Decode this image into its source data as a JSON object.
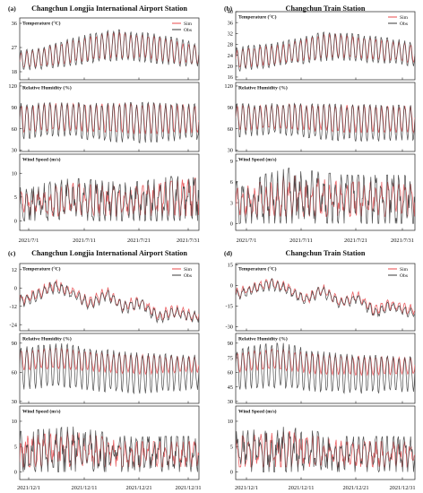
{
  "colors": {
    "sim": "#e8484b",
    "obs": "#3b3b3b"
  },
  "chart_data": [
    {
      "type": "line",
      "panel_label": "(a)",
      "title": "Changchun Longjia International Airport Station",
      "x_tick_labels": [
        "2021/7/1",
        "2021/7/11",
        "2021/7/21",
        "2021/7/31"
      ],
      "x_range": [
        "2021-07-01",
        "2021-07-31"
      ],
      "legend": {
        "placement": "top-right",
        "entries": [
          "Sim",
          "Obs"
        ]
      },
      "subplots": [
        {
          "label": "Temperature (°C)",
          "ylim": [
            15,
            38
          ],
          "yticks": [
            18,
            27,
            36
          ],
          "series": [
            {
              "name": "Sim",
              "x": [
                "2021-07-01",
                "2021-07-05",
                "2021-07-09",
                "2021-07-13",
                "2021-07-17",
                "2021-07-21",
                "2021-07-25",
                "2021-07-29",
                "2021-07-31"
              ],
              "daily_max": [
                25,
                27,
                29,
                31,
                33,
                32,
                31,
                29,
                28
              ],
              "daily_min": [
                19,
                20,
                21,
                22,
                23,
                23,
                22,
                21,
                21
              ]
            },
            {
              "name": "Obs",
              "x": [
                "2021-07-01",
                "2021-07-05",
                "2021-07-09",
                "2021-07-13",
                "2021-07-17",
                "2021-07-21",
                "2021-07-25",
                "2021-07-29",
                "2021-07-31"
              ],
              "daily_max": [
                26,
                27,
                30,
                32,
                34,
                33,
                32,
                30,
                29
              ],
              "daily_min": [
                18,
                19,
                20,
                21,
                22,
                22,
                21,
                20,
                20
              ]
            }
          ]
        },
        {
          "label": "Relative Humidity (%)",
          "ylim": [
            28,
            125
          ],
          "yticks": [
            30,
            60,
            90,
            120
          ],
          "series": [
            {
              "name": "Sim",
              "x": [
                "2021-07-01",
                "2021-07-08",
                "2021-07-15",
                "2021-07-22",
                "2021-07-31"
              ],
              "daily_max": [
                94,
                96,
                95,
                96,
                94
              ],
              "daily_min": [
                55,
                58,
                55,
                52,
                54
              ]
            },
            {
              "name": "Obs",
              "x": [
                "2021-07-01",
                "2021-07-08",
                "2021-07-15",
                "2021-07-22",
                "2021-07-31"
              ],
              "daily_max": [
                96,
                97,
                96,
                97,
                95
              ],
              "daily_min": [
                45,
                50,
                42,
                40,
                44
              ]
            }
          ]
        },
        {
          "label": "Wind Speed (m/s)",
          "ylim": [
            -2,
            14
          ],
          "yticks": [
            0,
            5,
            10
          ],
          "series": [
            {
              "name": "Sim",
              "x": [
                "2021-07-01",
                "2021-07-10",
                "2021-07-20",
                "2021-07-31"
              ],
              "daily_max": [
                6,
                8,
                7,
                9
              ],
              "daily_min": [
                1,
                1,
                1,
                1
              ]
            },
            {
              "name": "Obs",
              "x": [
                "2021-07-01",
                "2021-07-10",
                "2021-07-20",
                "2021-07-31"
              ],
              "daily_max": [
                7,
                9,
                8,
                10
              ],
              "daily_min": [
                0,
                0,
                0,
                0
              ]
            }
          ]
        }
      ]
    },
    {
      "type": "line",
      "panel_label": "(b)",
      "title": "Changchun Train Station",
      "x_tick_labels": [
        "2021/7/1",
        "2021/7/11",
        "2021/7/21",
        "2021/7/31"
      ],
      "x_range": [
        "2021-07-01",
        "2021-07-31"
      ],
      "legend": {
        "placement": "top-right",
        "entries": [
          "Sim",
          "Obs"
        ]
      },
      "subplots": [
        {
          "label": "Temperature (°C)",
          "ylim": [
            15,
            40
          ],
          "yticks": [
            16,
            20,
            24,
            28,
            32,
            36,
            40
          ],
          "series": [
            {
              "name": "Sim",
              "x": [
                "2021-07-01",
                "2021-07-05",
                "2021-07-09",
                "2021-07-13",
                "2021-07-17",
                "2021-07-21",
                "2021-07-25",
                "2021-07-29",
                "2021-07-31"
              ],
              "daily_max": [
                26,
                27,
                28,
                30,
                32,
                31,
                30,
                29,
                28
              ],
              "daily_min": [
                19,
                20,
                21,
                22,
                23,
                23,
                22,
                22,
                21
              ]
            },
            {
              "name": "Obs",
              "x": [
                "2021-07-01",
                "2021-07-05",
                "2021-07-09",
                "2021-07-13",
                "2021-07-17",
                "2021-07-21",
                "2021-07-25",
                "2021-07-29",
                "2021-07-31"
              ],
              "daily_max": [
                27,
                28,
                29,
                31,
                33,
                32,
                31,
                30,
                29
              ],
              "daily_min": [
                18,
                19,
                20,
                21,
                22,
                22,
                21,
                21,
                20
              ]
            }
          ]
        },
        {
          "label": "Relative Humidity (%)",
          "ylim": [
            28,
            125
          ],
          "yticks": [
            30,
            60,
            90,
            120
          ],
          "series": [
            {
              "name": "Sim",
              "x": [
                "2021-07-01",
                "2021-07-08",
                "2021-07-15",
                "2021-07-22",
                "2021-07-31"
              ],
              "daily_max": [
                92,
                95,
                94,
                93,
                92
              ],
              "daily_min": [
                58,
                60,
                56,
                54,
                55
              ]
            },
            {
              "name": "Obs",
              "x": [
                "2021-07-01",
                "2021-07-08",
                "2021-07-15",
                "2021-07-22",
                "2021-07-31"
              ],
              "daily_max": [
                95,
                96,
                95,
                94,
                93
              ],
              "daily_min": [
                48,
                52,
                45,
                42,
                44
              ]
            }
          ]
        },
        {
          "label": "Wind Speed (m/s)",
          "ylim": [
            -1,
            10
          ],
          "yticks": [
            0,
            3,
            6,
            9
          ],
          "series": [
            {
              "name": "Sim",
              "x": [
                "2021-07-01",
                "2021-07-10",
                "2021-07-20",
                "2021-07-31"
              ],
              "daily_max": [
                5,
                7,
                6,
                6
              ],
              "daily_min": [
                1,
                1,
                1,
                1
              ]
            },
            {
              "name": "Obs",
              "x": [
                "2021-07-01",
                "2021-07-10",
                "2021-07-20",
                "2021-07-31"
              ],
              "daily_max": [
                6,
                8,
                7,
                7
              ],
              "daily_min": [
                0,
                0,
                0,
                0
              ]
            }
          ]
        }
      ]
    },
    {
      "type": "line",
      "panel_label": "(c)",
      "title": "Changchun Longjia International Airport Station",
      "x_tick_labels": [
        "2021/12/1",
        "2021/12/11",
        "2021/12/21",
        "2021/12/31"
      ],
      "x_range": [
        "2021-12-01",
        "2021-12-31"
      ],
      "legend": {
        "placement": "top-right",
        "entries": [
          "Sim",
          "Obs"
        ]
      },
      "subplots": [
        {
          "label": "Temperature (°C)",
          "ylim": [
            -28,
            16
          ],
          "yticks": [
            -24,
            -12,
            0,
            12
          ],
          "series": [
            {
              "name": "Sim",
              "x": [
                "2021-12-01",
                "2021-12-04",
                "2021-12-07",
                "2021-12-10",
                "2021-12-13",
                "2021-12-16",
                "2021-12-19",
                "2021-12-22",
                "2021-12-25",
                "2021-12-28",
                "2021-12-31"
              ],
              "values": [
                -8,
                -4,
                2,
                -2,
                -10,
                -3,
                -12,
                -9,
                -18,
                -15,
                -18
              ]
            },
            {
              "name": "Obs",
              "x": [
                "2021-12-01",
                "2021-12-04",
                "2021-12-07",
                "2021-12-10",
                "2021-12-13",
                "2021-12-16",
                "2021-12-19",
                "2021-12-22",
                "2021-12-25",
                "2021-12-28",
                "2021-12-31"
              ],
              "values": [
                -9,
                -5,
                1,
                -3,
                -11,
                -4,
                -13,
                -10,
                -20,
                -16,
                -19
              ]
            }
          ]
        },
        {
          "label": "Relative Humidity (%)",
          "ylim": [
            28,
            100
          ],
          "yticks": [
            30,
            60,
            90
          ],
          "series": [
            {
              "name": "Sim",
              "x": [
                "2021-12-01",
                "2021-12-08",
                "2021-12-15",
                "2021-12-22",
                "2021-12-31"
              ],
              "daily_max": [
                82,
                85,
                80,
                78,
                76
              ],
              "daily_min": [
                62,
                64,
                60,
                58,
                60
              ]
            },
            {
              "name": "Obs",
              "x": [
                "2021-12-01",
                "2021-12-08",
                "2021-12-15",
                "2021-12-22",
                "2021-12-31"
              ],
              "daily_max": [
                86,
                90,
                84,
                80,
                78
              ],
              "daily_min": [
                42,
                45,
                40,
                38,
                42
              ]
            }
          ]
        },
        {
          "label": "Wind Speed (m/s)",
          "ylim": [
            -1.5,
            13
          ],
          "yticks": [
            0,
            5,
            10
          ],
          "series": [
            {
              "name": "Sim",
              "x": [
                "2021-12-01",
                "2021-12-10",
                "2021-12-20",
                "2021-12-31"
              ],
              "daily_max": [
                7,
                8,
                6,
                6
              ],
              "daily_min": [
                1,
                1,
                1,
                1
              ]
            },
            {
              "name": "Obs",
              "x": [
                "2021-12-01",
                "2021-12-10",
                "2021-12-20",
                "2021-12-31"
              ],
              "daily_max": [
                8,
                9,
                7,
                7
              ],
              "daily_min": [
                0,
                0,
                0,
                0
              ]
            }
          ]
        }
      ]
    },
    {
      "type": "line",
      "panel_label": "(d)",
      "title": "Changchun Train Station",
      "x_tick_labels": [
        "2021/12/1",
        "2021/12/11",
        "2021/12/21",
        "2021/12/31"
      ],
      "x_range": [
        "2021-12-01",
        "2021-12-31"
      ],
      "legend": {
        "placement": "top-right",
        "entries": [
          "Sim",
          "Obs"
        ]
      },
      "subplots": [
        {
          "label": "Temperature (°C)",
          "ylim": [
            -33,
            16
          ],
          "yticks": [
            -30,
            -15,
            0,
            15
          ],
          "series": [
            {
              "name": "Sim",
              "x": [
                "2021-12-01",
                "2021-12-04",
                "2021-12-07",
                "2021-12-10",
                "2021-12-13",
                "2021-12-16",
                "2021-12-19",
                "2021-12-22",
                "2021-12-25",
                "2021-12-28",
                "2021-12-31"
              ],
              "values": [
                -6,
                -2,
                2,
                -2,
                -10,
                -3,
                -12,
                -8,
                -18,
                -14,
                -18
              ]
            },
            {
              "name": "Obs",
              "x": [
                "2021-12-01",
                "2021-12-04",
                "2021-12-07",
                "2021-12-10",
                "2021-12-13",
                "2021-12-16",
                "2021-12-19",
                "2021-12-22",
                "2021-12-25",
                "2021-12-28",
                "2021-12-31"
              ],
              "values": [
                -7,
                -3,
                1,
                -3,
                -11,
                -4,
                -13,
                -9,
                -20,
                -15,
                -20
              ]
            }
          ]
        },
        {
          "label": "Relative Humidity (%)",
          "ylim": [
            28,
            100
          ],
          "yticks": [
            30,
            45,
            60,
            75,
            90
          ],
          "series": [
            {
              "name": "Sim",
              "x": [
                "2021-12-01",
                "2021-12-08",
                "2021-12-15",
                "2021-12-22",
                "2021-12-31"
              ],
              "daily_max": [
                80,
                84,
                79,
                77,
                75
              ],
              "daily_min": [
                60,
                63,
                58,
                57,
                58
              ]
            },
            {
              "name": "Obs",
              "x": [
                "2021-12-01",
                "2021-12-08",
                "2021-12-15",
                "2021-12-22",
                "2021-12-31"
              ],
              "daily_max": [
                84,
                92,
                82,
                78,
                76
              ],
              "daily_min": [
                42,
                44,
                40,
                38,
                40
              ]
            }
          ]
        },
        {
          "label": "Wind Speed (m/s)",
          "ylim": [
            -1.5,
            13
          ],
          "yticks": [
            0,
            5,
            10
          ],
          "series": [
            {
              "name": "Sim",
              "x": [
                "2021-12-01",
                "2021-12-10",
                "2021-12-20",
                "2021-12-31"
              ],
              "daily_max": [
                7,
                8,
                6,
                6
              ],
              "daily_min": [
                1,
                1,
                1,
                1
              ]
            },
            {
              "name": "Obs",
              "x": [
                "2021-12-01",
                "2021-12-10",
                "2021-12-20",
                "2021-12-31"
              ],
              "daily_max": [
                8,
                9,
                7,
                7
              ],
              "daily_min": [
                0,
                0,
                0,
                0
              ]
            }
          ]
        }
      ]
    }
  ]
}
